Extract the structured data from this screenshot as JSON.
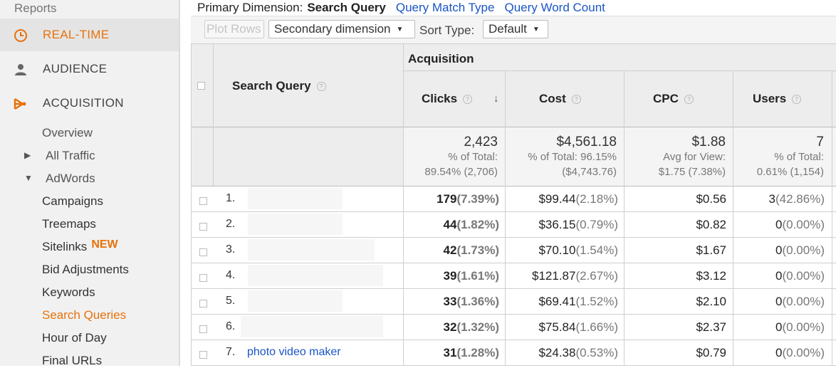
{
  "sidebar": {
    "reports_label": "Reports",
    "sections": [
      {
        "label": "REAL-TIME",
        "icon": "clock-icon",
        "active": true
      },
      {
        "label": "AUDIENCE",
        "icon": "person-icon",
        "active": false
      },
      {
        "label": "ACQUISITION",
        "icon": "acquisition-icon",
        "active": false
      }
    ],
    "acquisition_items": {
      "overview": "Overview",
      "all_traffic": "All Traffic",
      "adwords": "AdWords"
    },
    "adwords_items": [
      "Campaigns",
      "Treemaps",
      "Sitelinks",
      "Bid Adjustments",
      "Keywords",
      "Search Queries",
      "Hour of Day",
      "Final URLs"
    ],
    "new_badge": "NEW"
  },
  "dimension_bar": {
    "label": "Primary Dimension:",
    "value": "Search Query",
    "links": [
      "Query Match Type",
      "Query Word Count"
    ]
  },
  "toolbar": {
    "plot_rows": "Plot Rows",
    "secondary_dimension": "Secondary dimension",
    "sort_type_label": "Sort Type:",
    "sort_type_value": "Default"
  },
  "table": {
    "group_header": "Acquisition",
    "columns": {
      "query": "Search Query",
      "clicks": "Clicks",
      "cost": "Cost",
      "cpc": "CPC",
      "users": "Users"
    },
    "totals": {
      "clicks": {
        "value": "2,423",
        "l1": "% of Total:",
        "l2": "89.54% (2,706)"
      },
      "cost": {
        "value": "$4,561.18",
        "l1": "% of Total: 96.15%",
        "l2": "($4,743.76)"
      },
      "cpc": {
        "value": "$1.88",
        "l1": "Avg for View:",
        "l2": "$1.75 (7.38%)"
      },
      "users": {
        "value": "7",
        "l1": "% of Total:",
        "l2": "0.61% (1,154)"
      }
    },
    "rows": [
      {
        "num": "1.",
        "query": "",
        "clicks": "179",
        "clicks_pct": "(7.39%)",
        "cost": "$99.44",
        "cost_pct": "(2.18%)",
        "cpc": "$0.56",
        "users": "3",
        "users_pct": "(42.86%)"
      },
      {
        "num": "2.",
        "query": "",
        "clicks": "44",
        "clicks_pct": "(1.82%)",
        "cost": "$36.15",
        "cost_pct": "(0.79%)",
        "cpc": "$0.82",
        "users": "0",
        "users_pct": "(0.00%)"
      },
      {
        "num": "3.",
        "query": "",
        "clicks": "42",
        "clicks_pct": "(1.73%)",
        "cost": "$70.10",
        "cost_pct": "(1.54%)",
        "cpc": "$1.67",
        "users": "0",
        "users_pct": "(0.00%)"
      },
      {
        "num": "4.",
        "query": "",
        "clicks": "39",
        "clicks_pct": "(1.61%)",
        "cost": "$121.87",
        "cost_pct": "(2.67%)",
        "cpc": "$3.12",
        "users": "0",
        "users_pct": "(0.00%)"
      },
      {
        "num": "5.",
        "query": "",
        "clicks": "33",
        "clicks_pct": "(1.36%)",
        "cost": "$69.41",
        "cost_pct": "(1.52%)",
        "cpc": "$2.10",
        "users": "0",
        "users_pct": "(0.00%)"
      },
      {
        "num": "6.",
        "query": "",
        "clicks": "32",
        "clicks_pct": "(1.32%)",
        "cost": "$75.84",
        "cost_pct": "(1.66%)",
        "cpc": "$2.37",
        "users": "0",
        "users_pct": "(0.00%)"
      },
      {
        "num": "7.",
        "query": "photo video maker",
        "clicks": "31",
        "clicks_pct": "(1.28%)",
        "cost": "$24.38",
        "cost_pct": "(0.53%)",
        "cpc": "$0.79",
        "users": "0",
        "users_pct": "(0.00%)"
      }
    ]
  },
  "colors": {
    "accent": "#e8710a",
    "link": "#1a55c4"
  }
}
